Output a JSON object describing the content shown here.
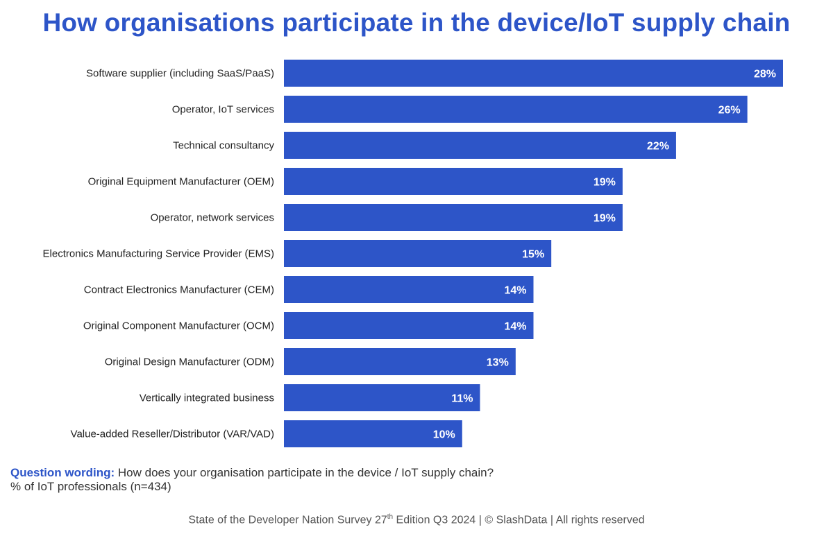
{
  "title": "How organisations participate in the device/IoT supply chain",
  "colors": {
    "bar": "#2d55c8",
    "title": "#2d55c8",
    "value_label": "#ffffff"
  },
  "chart_data": {
    "type": "bar",
    "orientation": "horizontal",
    "categories": [
      "Software supplier (including SaaS/PaaS)",
      "Operator, IoT services",
      "Technical consultancy",
      "Original Equipment Manufacturer (OEM)",
      "Operator, network services",
      "Electronics Manufacturing Service Provider (EMS)",
      "Contract Electronics Manufacturer (CEM)",
      "Original Component Manufacturer (OCM)",
      "Original Design Manufacturer (ODM)",
      "Vertically integrated business",
      "Value-added Reseller/Distributor (VAR/VAD)"
    ],
    "values": [
      28,
      26,
      22,
      19,
      19,
      15,
      14,
      14,
      13,
      11,
      10
    ],
    "labels": [
      "28%",
      "26%",
      "22%",
      "19%",
      "19%",
      "15%",
      "14%",
      "14%",
      "13%",
      "11%",
      "10%"
    ],
    "unit": "%",
    "xlim": [
      0,
      28
    ],
    "grid": false,
    "legend": "none"
  },
  "question": {
    "label": "Question wording:",
    "text": "How does your organisation participate in the device / IoT supply chain?",
    "base": "% of IoT professionals (n=434)"
  },
  "footer": {
    "pre": "State of the Developer Nation Survey 27",
    "sup": "th",
    "post": " Edition Q3 2024 | © SlashData | All rights reserved"
  }
}
